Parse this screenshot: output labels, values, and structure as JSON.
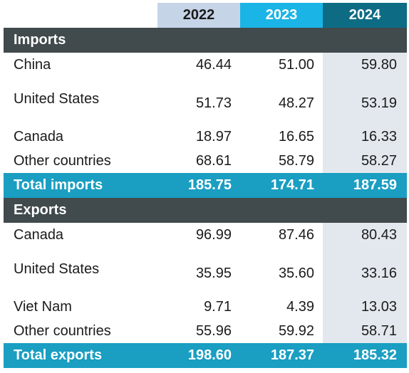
{
  "header": {
    "years": [
      "2022",
      "2023",
      "2024"
    ]
  },
  "imports": {
    "title": "Imports",
    "rows": [
      {
        "label": "China",
        "v2022": "46.44",
        "v2023": "51.00",
        "v2024": "59.80"
      },
      {
        "label": "United States",
        "v2022": "51.73",
        "v2023": "48.27",
        "v2024": "53.19"
      },
      {
        "label": "Canada",
        "v2022": "18.97",
        "v2023": "16.65",
        "v2024": "16.33"
      },
      {
        "label": "Other countries",
        "v2022": "68.61",
        "v2023": "58.79",
        "v2024": "58.27"
      }
    ],
    "total": {
      "label": "Total imports",
      "v2022": "185.75",
      "v2023": "174.71",
      "v2024": "187.59"
    }
  },
  "exports": {
    "title": "Exports",
    "rows": [
      {
        "label": "Canada",
        "v2022": "96.99",
        "v2023": "87.46",
        "v2024": "80.43"
      },
      {
        "label": "United States",
        "v2022": "35.95",
        "v2023": "35.60",
        "v2024": "33.16"
      },
      {
        "label": "Viet Nam",
        "v2022": "9.71",
        "v2023": "4.39",
        "v2024": "13.03"
      },
      {
        "label": "Other countries",
        "v2022": "55.96",
        "v2023": "59.92",
        "v2024": "58.71"
      }
    ],
    "total": {
      "label": "Total exports",
      "v2022": "198.60",
      "v2023": "187.37",
      "v2024": "185.32"
    }
  }
}
